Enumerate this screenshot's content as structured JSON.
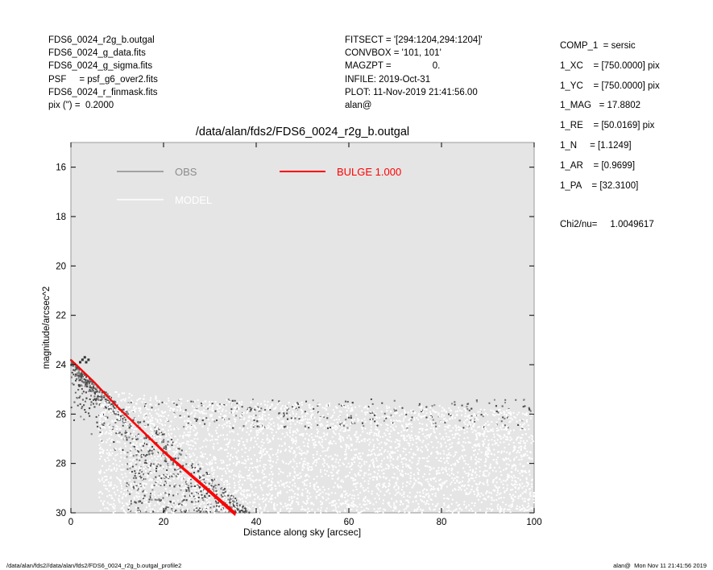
{
  "header_left": [
    "FDS6_0024_r2g_b.outgal",
    "FDS6_0024_g_data.fits",
    "FDS6_0024_g_sigma.fits",
    "PSF     = psf_g6_over2.fits",
    "FDS6_0024_r_finmask.fits",
    "pix (\") =  0.2000"
  ],
  "header_mid": [
    "FITSECT = '[294:1204,294:1204]'",
    "CONVBOX = '101, 101'",
    "MAGZPT =                0.",
    "INFILE: 2019-Oct-31",
    "PLOT: 11-Nov-2019 21:41:56.00",
    "alan@"
  ],
  "header_right": [
    "COMP_1  = sersic",
    "1_XC    = [750.0000] pix",
    "1_YC    = [750.0000] pix",
    "1_MAG   = 17.8802",
    "1_RE    = [50.0169] pix",
    "1_N     = [1.1249]",
    "1_AR    = [0.9699]",
    "1_PA    = [32.3100]"
  ],
  "chi2_label": "Chi2/nu=",
  "chi2_value": "1.0049617",
  "footer_left": "/data/alan/fds2//data/alan/fds2/FDS6_0024_r2g_b.outgal_profile2",
  "footer_right": "alan@  Mon Nov 11 21:41:56 2019",
  "chart_data": {
    "type": "scatter",
    "title": "/data/alan/fds2/FDS6_0024_r2g_b.outgal",
    "xlabel": "Distance along sky [arcsec]",
    "ylabel": "magnitude/arcsec^2",
    "xlim": [
      0,
      100
    ],
    "ylim": [
      30,
      15
    ],
    "y_inverted": true,
    "x_ticks": [
      0,
      20,
      40,
      60,
      80,
      100
    ],
    "y_ticks": [
      16,
      18,
      20,
      22,
      24,
      26,
      28,
      30
    ],
    "grid": false,
    "legend": [
      {
        "name": "OBS",
        "color": "#8c8c8c"
      },
      {
        "name": "MODEL",
        "color": "#ffffff"
      },
      {
        "name": "BULGE  1.000",
        "color": "#ff0000"
      }
    ],
    "series": [
      {
        "name": "OBS",
        "color": "#555555",
        "description": "noisy observed surface-brightness samples; dense cloud between 25.5 and 30 mag/arcsec^2 for r > 10 arcsec",
        "values": [
          [
            0.5,
            23.7
          ],
          [
            1.0,
            23.9
          ],
          [
            1.5,
            24.2
          ],
          [
            2.0,
            24.4
          ],
          [
            2.5,
            23.8
          ],
          [
            3.0,
            23.7
          ],
          [
            3.5,
            23.9
          ],
          [
            4.0,
            24.6
          ],
          [
            5.0,
            25.0
          ],
          [
            6.0,
            25.4
          ],
          [
            7.0,
            25.8
          ],
          [
            8.0,
            26.2
          ],
          [
            9.0,
            26.6
          ],
          [
            10.0,
            27.0
          ],
          [
            12.0,
            27.6
          ],
          [
            14.0,
            28.2
          ],
          [
            16.0,
            28.6
          ],
          [
            18.0,
            29.0
          ],
          [
            20.0,
            29.2
          ],
          [
            25.0,
            29.4
          ],
          [
            30.0,
            29.0
          ],
          [
            40.0,
            28.6
          ],
          [
            50.0,
            28.4
          ],
          [
            60.0,
            28.2
          ],
          [
            70.0,
            28.3
          ],
          [
            80.0,
            28.1
          ],
          [
            90.0,
            28.0
          ],
          [
            100.0,
            27.9
          ]
        ]
      },
      {
        "name": "MODEL",
        "color": "#ffffff",
        "description": "model samples forming upper envelope near 25.3 to 26.2 mag/arcsec^2",
        "values": [
          [
            10.0,
            25.2
          ],
          [
            20.0,
            25.4
          ],
          [
            30.0,
            25.5
          ],
          [
            40.0,
            25.6
          ],
          [
            50.0,
            25.6
          ],
          [
            60.0,
            25.7
          ],
          [
            70.0,
            25.7
          ],
          [
            80.0,
            25.8
          ],
          [
            90.0,
            25.9
          ],
          [
            100.0,
            26.0
          ]
        ]
      },
      {
        "name": "BULGE  1.000",
        "color": "#ff0000",
        "type": "line",
        "x": [
          0,
          5,
          10,
          15,
          20,
          25,
          30,
          35.5
        ],
        "y": [
          23.8,
          24.7,
          25.7,
          26.6,
          27.5,
          28.3,
          29.1,
          30.0
        ]
      }
    ]
  }
}
